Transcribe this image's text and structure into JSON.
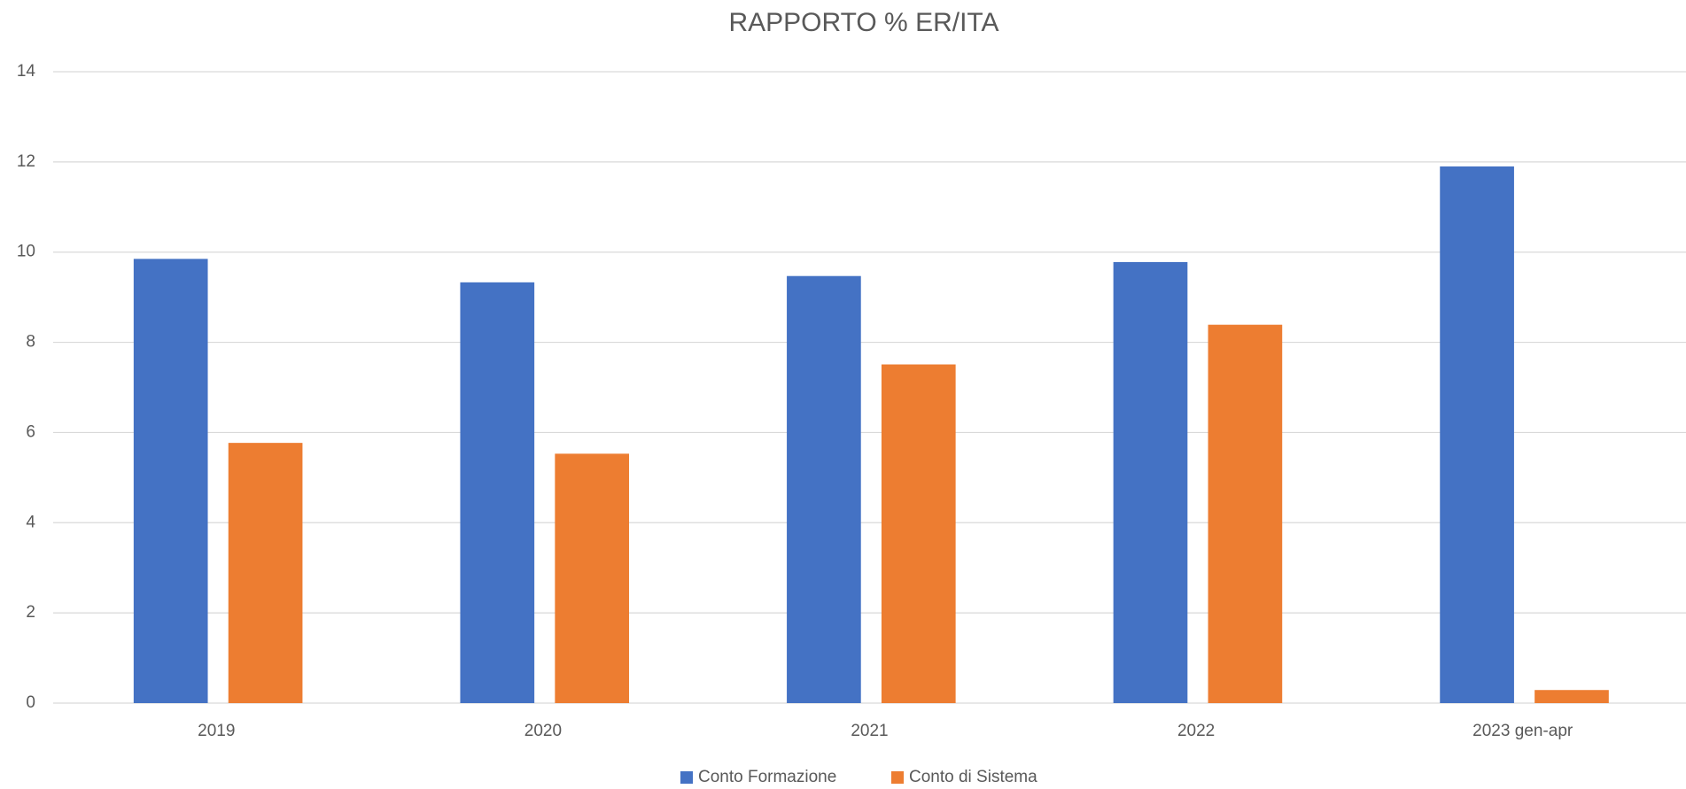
{
  "chart_data": {
    "type": "bar",
    "title": "RAPPORTO % ER/ITA",
    "categories": [
      "2019",
      "2020",
      "2021",
      "2022",
      "2023 gen-apr"
    ],
    "series": [
      {
        "name": "Conto Formazione",
        "color": "#4472c4",
        "values": [
          9.85,
          9.33,
          9.47,
          9.78,
          11.9
        ]
      },
      {
        "name": "Conto di Sistema",
        "color": "#ed7d31",
        "values": [
          5.77,
          5.53,
          7.51,
          8.39,
          0.29
        ]
      }
    ],
    "ylim": [
      0,
      14
    ],
    "yticks": [
      0,
      2,
      4,
      6,
      8,
      10,
      12,
      14
    ],
    "grid": true,
    "legend": "bottom"
  }
}
